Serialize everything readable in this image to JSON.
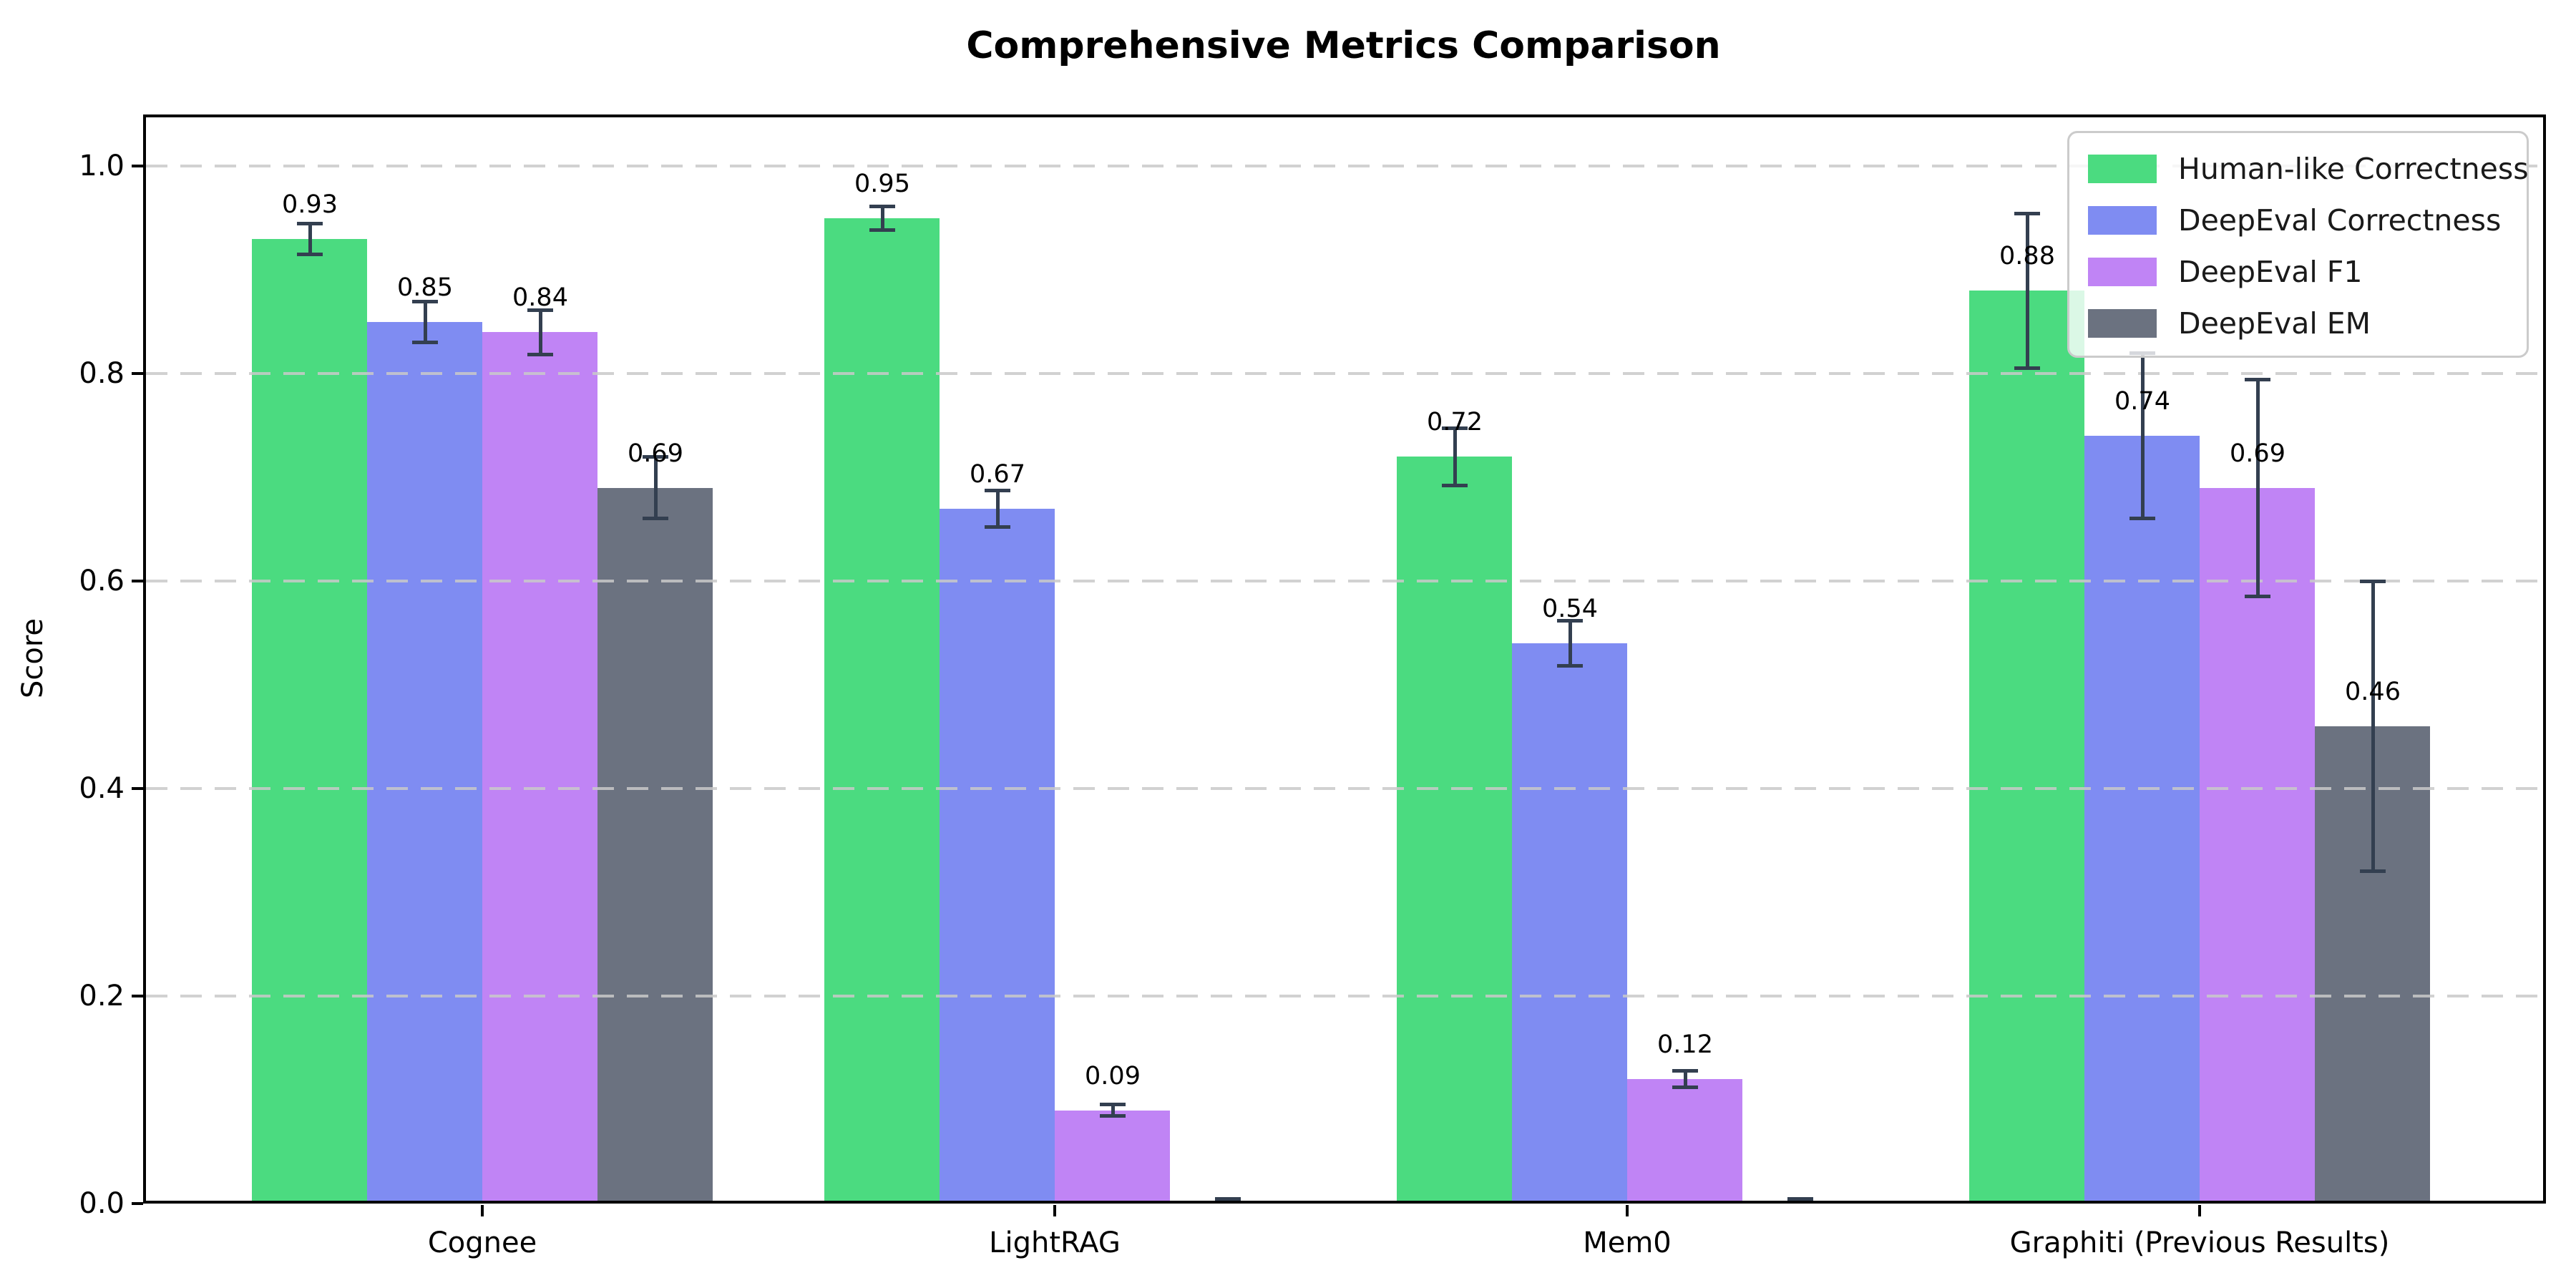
{
  "title": "Comprehensive Metrics Comparison",
  "ylabel": "Score",
  "chart_data": {
    "type": "bar",
    "title": "Comprehensive Metrics Comparison",
    "xlabel": "",
    "ylabel": "Score",
    "categories": [
      "Cognee",
      "LightRAG",
      "Mem0",
      "Graphiti (Previous Results)"
    ],
    "series": [
      {
        "name": "Human-like Correctness",
        "color": "#4bdb80",
        "values": [
          0.93,
          0.95,
          0.72,
          0.88
        ],
        "errors": [
          0.015,
          0.012,
          0.028,
          0.075
        ],
        "labels": [
          "0.93",
          "0.95",
          "0.72",
          "0.88"
        ]
      },
      {
        "name": "DeepEval Correctness",
        "color": "#7f8cf2",
        "values": [
          0.85,
          0.67,
          0.54,
          0.74
        ],
        "errors": [
          0.02,
          0.018,
          0.022,
          0.08
        ],
        "labels": [
          "0.85",
          "0.67",
          "0.54",
          "0.74"
        ]
      },
      {
        "name": "DeepEval F1",
        "color": "#c084f5",
        "values": [
          0.84,
          0.09,
          0.12,
          0.69
        ],
        "errors": [
          0.022,
          0.006,
          0.008,
          0.105
        ],
        "labels": [
          "0.84",
          "0.09",
          "0.12",
          "0.69"
        ]
      },
      {
        "name": "DeepEval EM",
        "color": "#6b7280",
        "values": [
          0.69,
          0.0,
          0.0,
          0.46
        ],
        "errors": [
          0.03,
          0.005,
          0.005,
          0.14
        ],
        "labels": [
          "0.69",
          "",
          "",
          "0.46"
        ]
      }
    ],
    "yticks": [
      0.0,
      0.2,
      0.4,
      0.6,
      0.8,
      1.0
    ],
    "ytick_labels": [
      "0.0",
      "0.2",
      "0.4",
      "0.6",
      "0.8",
      "1.0"
    ],
    "ylim": [
      0,
      1.05
    ],
    "grid": "horizontal dashed, drawn over bars",
    "legend_position": "upper right",
    "error_bar_color": "#333f50",
    "grid_color": "#c9c9c9",
    "background_color": "#ffffff"
  }
}
